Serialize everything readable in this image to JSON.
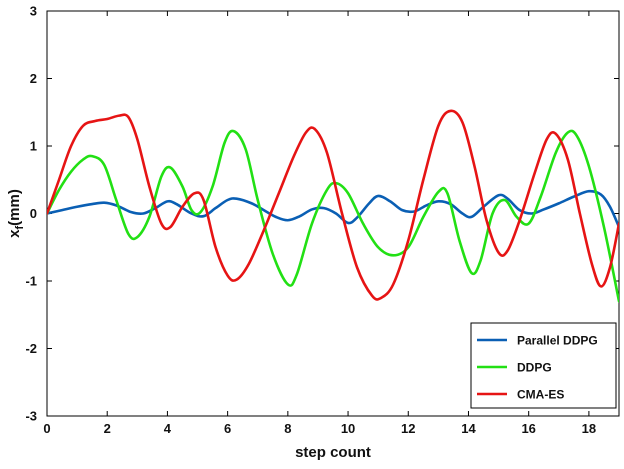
{
  "chart_data": {
    "type": "line",
    "xlabel": "step count",
    "ylabel": "x",
    "ylabel_subscript": "f",
    "ylabel_unit": "(mm)",
    "xlim": [
      0,
      19
    ],
    "ylim": [
      -3,
      3
    ],
    "xticks": [
      0,
      2,
      4,
      6,
      8,
      10,
      12,
      14,
      16,
      18
    ],
    "yticks": [
      -3,
      -2,
      -1,
      0,
      1,
      2,
      3
    ],
    "grid": false,
    "legend_position": "bottom-right",
    "series": [
      {
        "name": "Parallel DDPG",
        "color": "#0a5fb4",
        "points": [
          [
            0,
            0
          ],
          [
            0.5,
            0.05
          ],
          [
            1,
            0.1
          ],
          [
            1.5,
            0.14
          ],
          [
            1.9,
            0.16
          ],
          [
            2.3,
            0.12
          ],
          [
            2.8,
            0.02
          ],
          [
            3.2,
            0.0
          ],
          [
            3.6,
            0.08
          ],
          [
            4.0,
            0.18
          ],
          [
            4.3,
            0.14
          ],
          [
            4.8,
            0.0
          ],
          [
            5.2,
            -0.04
          ],
          [
            5.6,
            0.08
          ],
          [
            6.0,
            0.2
          ],
          [
            6.3,
            0.22
          ],
          [
            6.8,
            0.15
          ],
          [
            7.2,
            0.05
          ],
          [
            7.6,
            -0.05
          ],
          [
            8.0,
            -0.1
          ],
          [
            8.4,
            -0.04
          ],
          [
            8.8,
            0.06
          ],
          [
            9.2,
            0.08
          ],
          [
            9.6,
            0.0
          ],
          [
            10.0,
            -0.14
          ],
          [
            10.3,
            -0.06
          ],
          [
            10.7,
            0.15
          ],
          [
            11.0,
            0.26
          ],
          [
            11.4,
            0.18
          ],
          [
            11.8,
            0.05
          ],
          [
            12.2,
            0.03
          ],
          [
            12.6,
            0.12
          ],
          [
            13.0,
            0.18
          ],
          [
            13.4,
            0.14
          ],
          [
            13.8,
            0.0
          ],
          [
            14.1,
            -0.05
          ],
          [
            14.5,
            0.1
          ],
          [
            15.0,
            0.27
          ],
          [
            15.3,
            0.22
          ],
          [
            15.7,
            0.05
          ],
          [
            16.1,
            0.0
          ],
          [
            16.5,
            0.06
          ],
          [
            17.0,
            0.15
          ],
          [
            17.5,
            0.25
          ],
          [
            18.0,
            0.33
          ],
          [
            18.4,
            0.28
          ],
          [
            18.7,
            0.1
          ],
          [
            19.0,
            -0.2
          ]
        ]
      },
      {
        "name": "DDPG",
        "color": "#22e014",
        "points": [
          [
            0,
            0
          ],
          [
            0.4,
            0.35
          ],
          [
            0.8,
            0.62
          ],
          [
            1.2,
            0.8
          ],
          [
            1.5,
            0.85
          ],
          [
            1.9,
            0.72
          ],
          [
            2.3,
            0.2
          ],
          [
            2.7,
            -0.3
          ],
          [
            3.0,
            -0.35
          ],
          [
            3.4,
            -0.05
          ],
          [
            3.8,
            0.55
          ],
          [
            4.1,
            0.68
          ],
          [
            4.5,
            0.4
          ],
          [
            4.8,
            0.05
          ],
          [
            5.1,
            0.02
          ],
          [
            5.5,
            0.4
          ],
          [
            5.9,
            1.05
          ],
          [
            6.2,
            1.22
          ],
          [
            6.6,
            0.95
          ],
          [
            7.0,
            0.2
          ],
          [
            7.5,
            -0.6
          ],
          [
            8.0,
            -1.05
          ],
          [
            8.3,
            -0.9
          ],
          [
            8.8,
            -0.15
          ],
          [
            9.3,
            0.35
          ],
          [
            9.6,
            0.45
          ],
          [
            10.0,
            0.3
          ],
          [
            10.5,
            -0.15
          ],
          [
            11.0,
            -0.5
          ],
          [
            11.5,
            -0.62
          ],
          [
            12.0,
            -0.5
          ],
          [
            12.5,
            -0.05
          ],
          [
            13.0,
            0.32
          ],
          [
            13.3,
            0.3
          ],
          [
            13.7,
            -0.4
          ],
          [
            14.1,
            -0.88
          ],
          [
            14.4,
            -0.7
          ],
          [
            14.8,
            0.0
          ],
          [
            15.2,
            0.2
          ],
          [
            15.6,
            -0.05
          ],
          [
            16.0,
            -0.15
          ],
          [
            16.4,
            0.25
          ],
          [
            16.9,
            0.9
          ],
          [
            17.3,
            1.2
          ],
          [
            17.6,
            1.15
          ],
          [
            18.0,
            0.7
          ],
          [
            18.5,
            -0.2
          ],
          [
            19.0,
            -1.3
          ]
        ]
      },
      {
        "name": "CMA-ES",
        "color": "#e61414",
        "points": [
          [
            0,
            0
          ],
          [
            0.4,
            0.5
          ],
          [
            0.8,
            1.0
          ],
          [
            1.2,
            1.3
          ],
          [
            1.6,
            1.37
          ],
          [
            2.0,
            1.4
          ],
          [
            2.4,
            1.45
          ],
          [
            2.7,
            1.43
          ],
          [
            3.0,
            1.1
          ],
          [
            3.4,
            0.4
          ],
          [
            3.8,
            -0.15
          ],
          [
            4.1,
            -0.2
          ],
          [
            4.5,
            0.1
          ],
          [
            4.9,
            0.3
          ],
          [
            5.2,
            0.2
          ],
          [
            5.6,
            -0.5
          ],
          [
            6.0,
            -0.92
          ],
          [
            6.3,
            -0.98
          ],
          [
            6.7,
            -0.75
          ],
          [
            7.2,
            -0.25
          ],
          [
            7.7,
            0.3
          ],
          [
            8.2,
            0.85
          ],
          [
            8.6,
            1.2
          ],
          [
            8.9,
            1.25
          ],
          [
            9.3,
            0.9
          ],
          [
            9.8,
            0.0
          ],
          [
            10.3,
            -0.8
          ],
          [
            10.8,
            -1.22
          ],
          [
            11.1,
            -1.25
          ],
          [
            11.5,
            -1.05
          ],
          [
            12.0,
            -0.4
          ],
          [
            12.5,
            0.5
          ],
          [
            13.0,
            1.3
          ],
          [
            13.4,
            1.52
          ],
          [
            13.8,
            1.35
          ],
          [
            14.2,
            0.7
          ],
          [
            14.6,
            -0.1
          ],
          [
            15.0,
            -0.58
          ],
          [
            15.3,
            -0.55
          ],
          [
            15.7,
            -0.1
          ],
          [
            16.2,
            0.6
          ],
          [
            16.6,
            1.1
          ],
          [
            16.9,
            1.18
          ],
          [
            17.3,
            0.8
          ],
          [
            17.7,
            0.0
          ],
          [
            18.1,
            -0.75
          ],
          [
            18.4,
            -1.08
          ],
          [
            18.7,
            -0.8
          ],
          [
            19.0,
            -0.15
          ]
        ]
      }
    ]
  }
}
